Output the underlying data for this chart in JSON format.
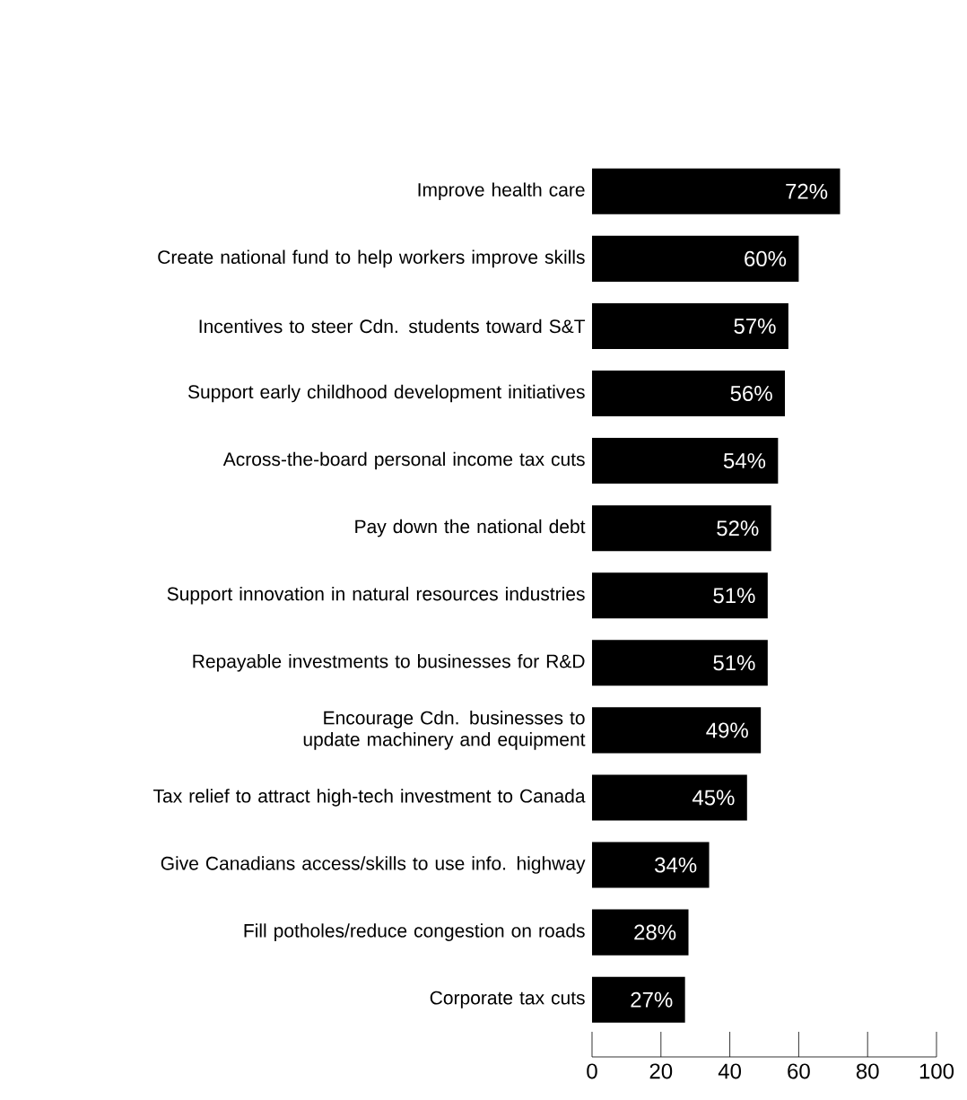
{
  "chart_data": {
    "type": "bar",
    "orientation": "horizontal",
    "categories": [
      "Improve health care",
      "Create national fund to help workers improve skills",
      "Incentives to steer Cdn. students toward S&T",
      "Support early childhood development initiatives",
      "Across-the-board personal income tax cuts",
      "Pay down the national debt",
      "Support innovation in natural resources industries",
      "Repayable investments to businesses for R&D",
      "Encourage Cdn. businesses to update machinery and equipment",
      "Tax relief to attract high-tech investment to Canada",
      "Give Canadians access/skills to use info. highway",
      "Fill potholes/reduce congestion on roads",
      "Corporate tax cuts"
    ],
    "values": [
      72,
      60,
      57,
      56,
      54,
      52,
      51,
      51,
      49,
      45,
      34,
      28,
      27
    ],
    "value_labels": [
      "72%",
      "60%",
      "57%",
      "56%",
      "54%",
      "52%",
      "51%",
      "51%",
      "49%",
      "45%",
      "34%",
      "28%",
      "27%"
    ],
    "color": "#000000",
    "xlim": [
      0,
      100
    ],
    "xticks": [
      0,
      20,
      40,
      60,
      80,
      100
    ]
  }
}
